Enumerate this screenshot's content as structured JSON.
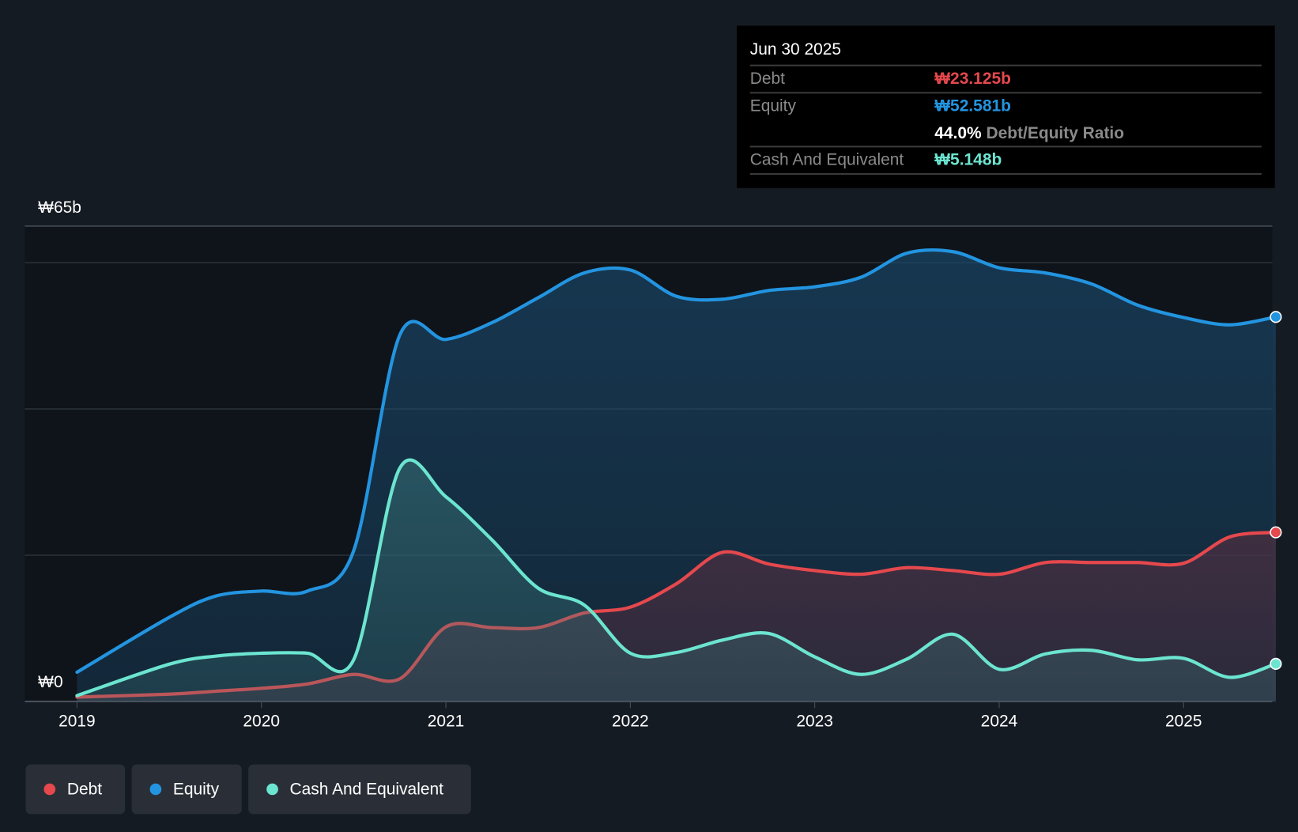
{
  "tooltip": {
    "date": "Jun 30 2025",
    "debt_label": "Debt",
    "debt_value": "₩23.125b",
    "equity_label": "Equity",
    "equity_value": "₩52.581b",
    "ratio_value": "44.0%",
    "ratio_label": "Debt/Equity Ratio",
    "cash_label": "Cash And Equivalent",
    "cash_value": "₩5.148b"
  },
  "legend": [
    {
      "label": "Debt",
      "color": "#e5484d"
    },
    {
      "label": "Equity",
      "color": "#2394e0"
    },
    {
      "label": "Cash And Equivalent",
      "color": "#6ce5d0"
    }
  ],
  "chart_data": {
    "type": "area",
    "ylim": [
      0,
      65
    ],
    "y_tick_labels": [
      "₩0",
      "₩65b"
    ],
    "gridlines": [
      0,
      20,
      40,
      60,
      65
    ],
    "x_tick_labels": [
      "2019",
      "2020",
      "2021",
      "2022",
      "2023",
      "2024",
      "2025"
    ],
    "x_ticks": [
      2019,
      2020,
      2021,
      2022,
      2023,
      2024,
      2025
    ],
    "xlim": [
      2018.72,
      2025.5
    ],
    "x": [
      2019,
      2019.5,
      2019.75,
      2020,
      2020.25,
      2020.5,
      2020.75,
      2021,
      2021.25,
      2021.5,
      2021.75,
      2022,
      2022.25,
      2022.5,
      2022.75,
      2023,
      2023.25,
      2023.5,
      2023.75,
      2024,
      2024.25,
      2024.5,
      2024.75,
      2025,
      2025.25,
      2025.5
    ],
    "series": [
      {
        "name": "Equity",
        "color": "#2394e0",
        "values": [
          4.0,
          11.5,
          14.4,
          15.1,
          15.1,
          20.6,
          50.1,
          49.5,
          51.8,
          55.2,
          58.6,
          59.0,
          55.4,
          55.0,
          56.2,
          56.7,
          58.0,
          61.3,
          61.5,
          59.3,
          58.6,
          57.1,
          54.2,
          52.5,
          51.5,
          52.58
        ]
      },
      {
        "name": "Debt",
        "color": "#e5484d",
        "values": [
          0.6,
          1.0,
          1.4,
          1.8,
          2.4,
          3.7,
          3.1,
          10.2,
          10.1,
          10.1,
          12.1,
          12.9,
          16.1,
          20.4,
          18.8,
          17.9,
          17.4,
          18.3,
          17.9,
          17.4,
          19.0,
          19.0,
          19.0,
          18.9,
          22.5,
          23.13
        ]
      },
      {
        "name": "Cash And Equivalent",
        "color": "#6ce5d0",
        "values": [
          0.8,
          5.1,
          6.2,
          6.6,
          6.6,
          5.7,
          31.9,
          28.0,
          22.1,
          15.5,
          13.2,
          6.6,
          6.7,
          8.4,
          9.3,
          6.1,
          3.7,
          5.8,
          9.2,
          4.4,
          6.5,
          7.0,
          5.7,
          5.9,
          3.3,
          5.15
        ]
      }
    ]
  }
}
